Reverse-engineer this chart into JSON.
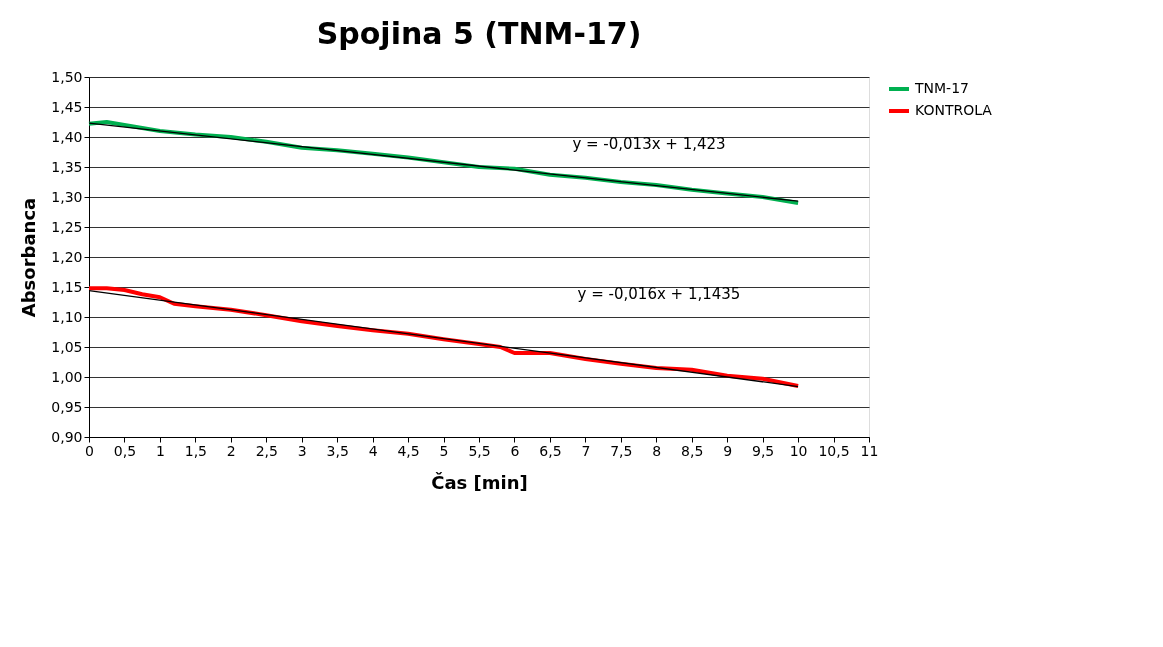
{
  "chart_data": {
    "type": "line",
    "title": "Spojina 5 (TNM-17)",
    "xlabel": "Čas [min]",
    "ylabel": "Absorbanca",
    "xlim": [
      0,
      11
    ],
    "ylim": [
      0.9,
      1.5
    ],
    "xticks": [
      0,
      {
        "value": 0.5,
        "label": "0,5"
      },
      1,
      {
        "value": 1.5,
        "label": "1,5"
      },
      2,
      {
        "value": 2.5,
        "label": "2,5"
      },
      3,
      {
        "value": 3.5,
        "label": "3,5"
      },
      4,
      {
        "value": 4.5,
        "label": "4,5"
      },
      5,
      {
        "value": 5.5,
        "label": "5,5"
      },
      6,
      {
        "value": 6.5,
        "label": "6,5"
      },
      7,
      {
        "value": 7.5,
        "label": "7,5"
      },
      8,
      {
        "value": 8.5,
        "label": "8,5"
      },
      9,
      {
        "value": 9.5,
        "label": "9,5"
      },
      10,
      {
        "value": 10.5,
        "label": "10,5"
      },
      11
    ],
    "yticks": [
      {
        "value": 0.9,
        "label": "0,90"
      },
      {
        "value": 0.95,
        "label": "0,95"
      },
      {
        "value": 1.0,
        "label": "1,00"
      },
      {
        "value": 1.05,
        "label": "1,05"
      },
      {
        "value": 1.1,
        "label": "1,10"
      },
      {
        "value": 1.15,
        "label": "1,15"
      },
      {
        "value": 1.2,
        "label": "1,20"
      },
      {
        "value": 1.25,
        "label": "1,25"
      },
      {
        "value": 1.3,
        "label": "1,30"
      },
      {
        "value": 1.35,
        "label": "1,35"
      },
      {
        "value": 1.4,
        "label": "1,40"
      },
      {
        "value": 1.45,
        "label": "1,45"
      },
      {
        "value": 1.5,
        "label": "1,50"
      }
    ],
    "grid": "y",
    "legend": "right",
    "marker": "none",
    "line_style": "solid",
    "series": [
      {
        "name": "TNM-17",
        "color": "#00b050",
        "x": [
          0,
          0.25,
          0.5,
          1,
          1.5,
          2,
          2.5,
          3,
          3.5,
          4,
          4.5,
          5,
          5.5,
          6,
          6.5,
          7,
          7.5,
          8,
          8.5,
          9,
          9.5,
          10
        ],
        "values": [
          1.422,
          1.425,
          1.42,
          1.41,
          1.404,
          1.4,
          1.392,
          1.382,
          1.378,
          1.372,
          1.366,
          1.358,
          1.35,
          1.347,
          1.337,
          1.332,
          1.325,
          1.32,
          1.312,
          1.306,
          1.3,
          1.29
        ]
      },
      {
        "name": "KONTROLA",
        "color": "#ff0000",
        "x": [
          0,
          0.25,
          0.5,
          0.75,
          1,
          1.2,
          1.5,
          2,
          2.5,
          3,
          3.5,
          4,
          4.5,
          5,
          5.5,
          5.8,
          6,
          6.3,
          6.5,
          7,
          7.5,
          8,
          8.5,
          9,
          9.5,
          10
        ],
        "values": [
          1.148,
          1.148,
          1.145,
          1.138,
          1.133,
          1.122,
          1.118,
          1.112,
          1.103,
          1.093,
          1.085,
          1.078,
          1.072,
          1.063,
          1.055,
          1.05,
          1.04,
          1.04,
          1.04,
          1.03,
          1.022,
          1.015,
          1.012,
          1.002,
          0.997,
          0.985
        ]
      },
      {
        "color": "#000000",
        "x": [
          0,
          10
        ],
        "values": [
          1.423,
          1.293
        ]
      },
      {
        "color": "#000000",
        "x": [
          0,
          10
        ],
        "values": [
          1.144,
          0.984
        ]
      }
    ],
    "annotations": [
      "y = -0,013x + 1,423",
      "y = -0,016x + 1,1435"
    ]
  }
}
